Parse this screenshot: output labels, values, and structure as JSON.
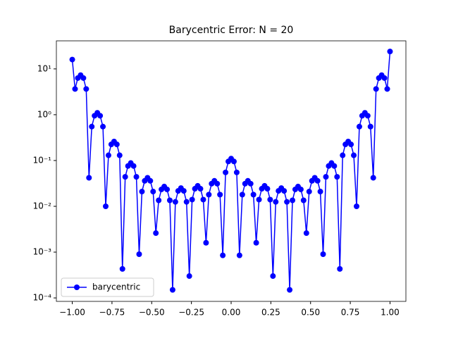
{
  "chart_data": {
    "type": "line",
    "title": "Barycentric Error: N = 20",
    "x": [
      -1,
      -0.9825,
      -0.9649,
      -0.9474,
      -0.9298,
      -0.9123,
      -0.8947,
      -0.8772,
      -0.8596,
      -0.8421,
      -0.8246,
      -0.807,
      -0.7895,
      -0.7719,
      -0.7544,
      -0.7368,
      -0.7193,
      -0.7018,
      -0.6842,
      -0.6667,
      -0.6491,
      -0.6316,
      -0.614,
      -0.5965,
      -0.5789,
      -0.5614,
      -0.5439,
      -0.5263,
      -0.5088,
      -0.4912,
      -0.4737,
      -0.4561,
      -0.4386,
      -0.4211,
      -0.4035,
      -0.386,
      -0.3684,
      -0.3509,
      -0.3333,
      -0.3158,
      -0.2982,
      -0.2807,
      -0.2632,
      -0.2456,
      -0.2281,
      -0.2105,
      -0.193,
      -0.1754,
      -0.1579,
      -0.1404,
      -0.1228,
      -0.1053,
      -0.0877,
      -0.0702,
      -0.0526,
      -0.0351,
      -0.0175,
      0,
      0.0175,
      0.0351,
      0.0526,
      0.0702,
      0.0877,
      0.1053,
      0.1228,
      0.1404,
      0.1579,
      0.1754,
      0.193,
      0.2105,
      0.2281,
      0.2456,
      0.2632,
      0.2807,
      0.2982,
      0.3158,
      0.3333,
      0.3509,
      0.3684,
      0.386,
      0.4035,
      0.4211,
      0.4386,
      0.4561,
      0.4737,
      0.4912,
      0.5088,
      0.5263,
      0.5439,
      0.5614,
      0.5789,
      0.5965,
      0.614,
      0.6316,
      0.6491,
      0.6667,
      0.6842,
      0.7018,
      0.7193,
      0.7368,
      0.7544,
      0.7719,
      0.7895,
      0.807,
      0.8246,
      0.8421,
      0.8596,
      0.8772,
      0.8947,
      0.9123,
      0.9298,
      0.9474,
      0.9649,
      0.9825,
      1
    ],
    "series": [
      {
        "name": "barycentric",
        "color": "#0000ff",
        "values": [
          16,
          3.65,
          6.32,
          7.3,
          6.32,
          3.65,
          0.042,
          0.55,
          0.95,
          1.1,
          0.95,
          0.55,
          0.01,
          0.13,
          0.225,
          0.26,
          0.225,
          0.13,
          0.00043,
          0.044,
          0.076,
          0.088,
          0.076,
          0.044,
          0.0009,
          0.021,
          0.036,
          0.042,
          0.036,
          0.021,
          0.0026,
          0.0135,
          0.0234,
          0.027,
          0.0234,
          0.0135,
          0.00015,
          0.0125,
          0.0217,
          0.025,
          0.0217,
          0.0125,
          0.0003,
          0.014,
          0.0242,
          0.028,
          0.0242,
          0.014,
          0.0016,
          0.018,
          0.0312,
          0.036,
          0.0312,
          0.018,
          0.00085,
          0.055,
          0.0953,
          0.11,
          0.0953,
          0.055,
          0.00085,
          0.018,
          0.0312,
          0.036,
          0.0312,
          0.018,
          0.0016,
          0.014,
          0.0242,
          0.028,
          0.0242,
          0.014,
          0.0003,
          0.0125,
          0.0217,
          0.025,
          0.0217,
          0.0125,
          0.00015,
          0.0135,
          0.0234,
          0.027,
          0.0234,
          0.0135,
          0.0026,
          0.021,
          0.036,
          0.042,
          0.036,
          0.021,
          0.0009,
          0.044,
          0.076,
          0.088,
          0.076,
          0.044,
          0.00043,
          0.13,
          0.225,
          0.26,
          0.225,
          0.13,
          0.01,
          0.55,
          0.95,
          1.1,
          0.95,
          0.55,
          0.042,
          3.65,
          6.32,
          7.3,
          6.32,
          3.65,
          24
        ]
      }
    ],
    "xlim": [
      -1.1,
      1.1
    ],
    "xticks": [
      {
        "value": -1,
        "label": "−1.00"
      },
      {
        "value": -0.75,
        "label": "−0.75"
      },
      {
        "value": -0.5,
        "label": "−0.50"
      },
      {
        "value": -0.25,
        "label": "−0.25"
      },
      {
        "value": 0,
        "label": "0.00"
      },
      {
        "value": 0.25,
        "label": "0.25"
      },
      {
        "value": 0.5,
        "label": "0.50"
      },
      {
        "value": 0.75,
        "label": "0.75"
      },
      {
        "value": 1,
        "label": "1.00"
      }
    ],
    "ylim": [
      8.4e-05,
      41
    ],
    "yticks": [
      {
        "value": 0.0001,
        "label": "10⁻⁴"
      },
      {
        "value": 0.001,
        "label": "10⁻³"
      },
      {
        "value": 0.01,
        "label": "10⁻²"
      },
      {
        "value": 0.1,
        "label": "10⁻¹"
      },
      {
        "value": 1,
        "label": "10⁰"
      },
      {
        "value": 10,
        "label": "10¹"
      }
    ],
    "log_y": true,
    "grid": false,
    "legend": "lower left"
  }
}
